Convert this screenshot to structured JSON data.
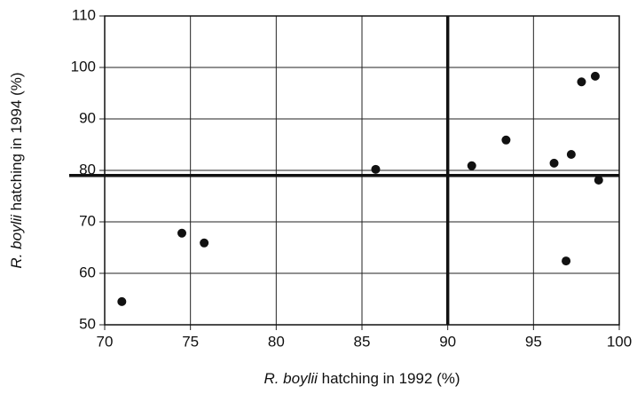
{
  "chart_data": {
    "type": "scatter",
    "xlabel": {
      "italic": "R. boylii",
      "rest": " hatching in 1992 (%)"
    },
    "ylabel": {
      "italic": "R. boylii",
      "rest": " hatching in 1994 (%)"
    },
    "x": [
      71.0,
      74.5,
      75.8,
      85.8,
      91.4,
      93.4,
      96.2,
      97.2,
      97.8,
      98.6,
      98.8,
      96.9
    ],
    "y": [
      54.5,
      67.8,
      65.9,
      80.2,
      80.9,
      85.9,
      81.4,
      83.1,
      97.2,
      98.3,
      78.1,
      62.4
    ],
    "color": "#111111",
    "xlim": [
      70,
      100
    ],
    "xticks": [
      70,
      75,
      80,
      85,
      90,
      95,
      100
    ],
    "ylim": [
      50,
      110
    ],
    "yticks": [
      50,
      60,
      70,
      80,
      90,
      100,
      110
    ],
    "grid": true,
    "reference_lines": {
      "x": 90,
      "y": 79
    }
  }
}
